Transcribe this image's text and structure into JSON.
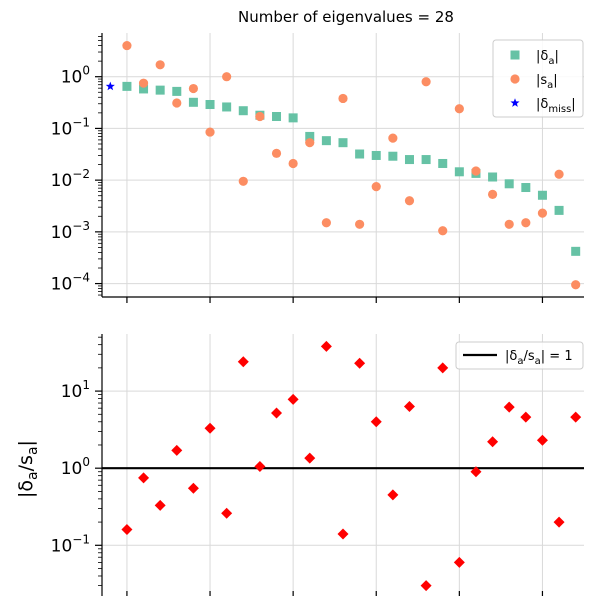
{
  "colors": {
    "delta": "#66c2a5",
    "s": "#fc8d62",
    "miss": "#0000ff",
    "ratio": "#ff0000",
    "grid": "#d9d9d9",
    "line": "#000000"
  },
  "chart_data": [
    {
      "type": "scatter",
      "title": "Number of eigenvalues = 28",
      "xlabel": "",
      "ylabel": "",
      "yscale": "log",
      "ylim": [
        5.5e-05,
        7
      ],
      "xlim": [
        -0.5,
        28.5
      ],
      "y_ticks": [
        {
          "value": 1,
          "base": "10",
          "exp": "0"
        },
        {
          "value": 0.1,
          "base": "10",
          "exp": "−1"
        },
        {
          "value": 0.01,
          "base": "10",
          "exp": "−2"
        },
        {
          "value": 0.001,
          "base": "10",
          "exp": "−3"
        },
        {
          "value": 0.0001,
          "base": "10",
          "exp": "−4"
        }
      ],
      "x_gridlines": [
        1,
        6,
        11,
        16,
        21,
        26
      ],
      "grid": true,
      "legend_position": "top-right",
      "series": [
        {
          "name": "|δa|",
          "name_base": "|δ",
          "name_sub": "a",
          "name_tail": "|",
          "marker": "square",
          "x": [
            1,
            2,
            3,
            4,
            5,
            6,
            7,
            8,
            9,
            10,
            11,
            12,
            13,
            14,
            15,
            16,
            17,
            18,
            19,
            20,
            21,
            22,
            23,
            24,
            25,
            26,
            27,
            28
          ],
          "values": [
            0.65,
            0.58,
            0.55,
            0.52,
            0.32,
            0.29,
            0.26,
            0.22,
            0.18,
            0.17,
            0.16,
            0.07,
            0.058,
            0.053,
            0.032,
            0.03,
            0.029,
            0.025,
            0.025,
            0.021,
            0.0145,
            0.0135,
            0.0115,
            0.0085,
            0.0072,
            0.0051,
            0.0026,
            0.00042
          ]
        },
        {
          "name": "|sa|",
          "name_base": "|s",
          "name_sub": "a",
          "name_tail": "|",
          "marker": "circle",
          "x": [
            1,
            2,
            3,
            4,
            5,
            6,
            7,
            8,
            9,
            10,
            11,
            12,
            13,
            14,
            15,
            16,
            17,
            18,
            19,
            20,
            21,
            22,
            23,
            24,
            25,
            26,
            27,
            28
          ],
          "values": [
            4.0,
            0.75,
            1.7,
            0.31,
            0.59,
            0.085,
            1.0,
            0.0095,
            0.17,
            0.033,
            0.021,
            0.053,
            0.0015,
            0.38,
            0.0014,
            0.0075,
            0.065,
            0.004,
            0.8,
            0.00105,
            0.24,
            0.015,
            0.0053,
            0.0014,
            0.0015,
            0.0023,
            0.013,
            9.5e-05
          ]
        },
        {
          "name": "|δmiss|",
          "name_base": "|δ",
          "name_sub": "miss",
          "name_tail": "|",
          "marker": "star",
          "x": [
            0
          ],
          "values": [
            0.65
          ]
        }
      ]
    },
    {
      "type": "scatter",
      "title": "",
      "xlabel": "",
      "ylabel": "|δa/sa|",
      "ylabel_parts": {
        "a": "|δ",
        "sub1": "a",
        "b": "/s",
        "sub2": "a",
        "c": "|"
      },
      "yscale": "log",
      "ylim": [
        0.022,
        55
      ],
      "xlim": [
        -0.5,
        28.5
      ],
      "y_ticks": [
        {
          "value": 10,
          "base": "10",
          "exp": "1"
        },
        {
          "value": 1,
          "base": "10",
          "exp": "0"
        },
        {
          "value": 0.1,
          "base": "10",
          "exp": "−1"
        }
      ],
      "x_gridlines": [
        1,
        6,
        11,
        16,
        21,
        26
      ],
      "grid": true,
      "legend_position": "top-right",
      "reference_line": {
        "y": 1,
        "label": "|δa/sa| = 1",
        "label_parts": {
          "a": "|δ",
          "sub1": "a",
          "b": "/s",
          "sub2": "a",
          "c": "| = 1"
        }
      },
      "series": [
        {
          "name": "",
          "marker": "diamond",
          "x": [
            1,
            2,
            3,
            4,
            5,
            6,
            7,
            8,
            9,
            10,
            11,
            12,
            13,
            14,
            15,
            16,
            17,
            18,
            19,
            20,
            21,
            22,
            23,
            24,
            25,
            26,
            27,
            28
          ],
          "values": [
            0.16,
            0.75,
            0.33,
            1.7,
            0.55,
            3.3,
            0.26,
            24,
            1.05,
            5.2,
            7.8,
            1.35,
            38,
            0.14,
            23,
            4.0,
            0.45,
            6.3,
            0.03,
            20,
            0.06,
            0.9,
            2.2,
            6.2,
            4.6,
            2.3,
            0.2,
            4.6
          ]
        }
      ]
    }
  ]
}
